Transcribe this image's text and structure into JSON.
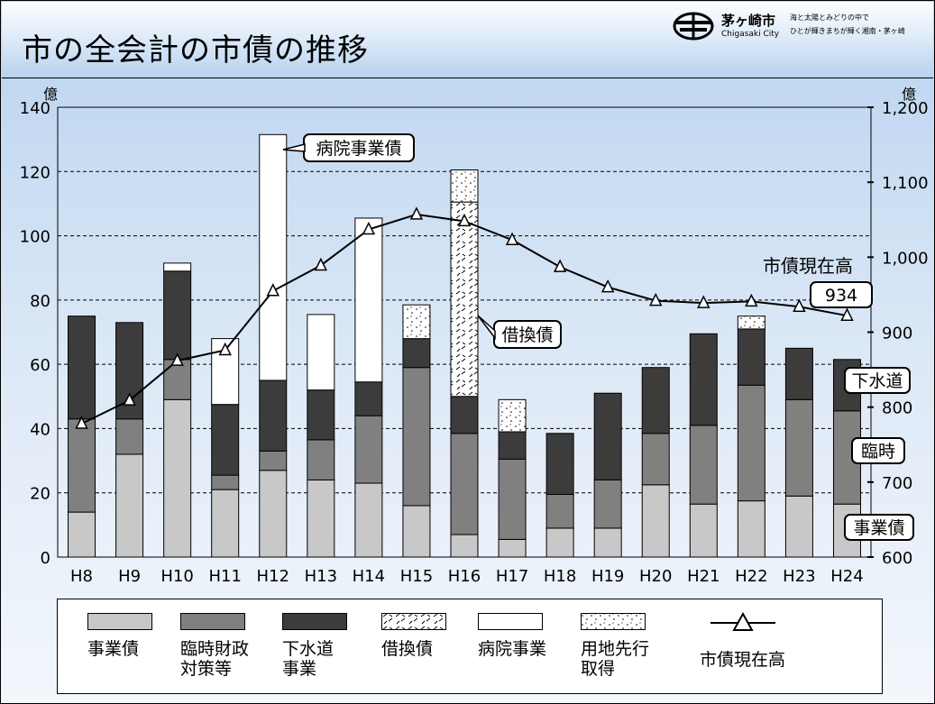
{
  "header": {
    "title": "市の全会計の市債の推移",
    "city_name": "茅ヶ崎市",
    "city_name_en": "Chigasaki City",
    "slogan_line1": "海と太陽とみどりの中で",
    "slogan_line2": "ひとが輝きまちが輝く湘南・茅ヶ崎"
  },
  "chart_data": {
    "type": "bar",
    "stacked": true,
    "categories": [
      "H8",
      "H9",
      "H10",
      "H11",
      "H12",
      "H13",
      "H14",
      "H15",
      "H16",
      "H17",
      "H18",
      "H19",
      "H20",
      "H21",
      "H22",
      "H23",
      "H24"
    ],
    "left_axis": {
      "unit": "億",
      "min": 0,
      "max": 140,
      "ticks": [
        "0",
        "20",
        "40",
        "60",
        "80",
        "100",
        "120",
        "140"
      ]
    },
    "right_axis": {
      "unit": "億",
      "min": 600,
      "max": 1200,
      "ticks": [
        "600",
        "700",
        "800",
        "900",
        "1,000",
        "1,100",
        "1,200"
      ]
    },
    "grid": true,
    "colors": {
      "事業債": "#c8c8c8",
      "臨時財政対策等": "#808080",
      "下水道事業": "#3c3c3c",
      "借換債": "#ffffff",
      "病院事業": "#ffffff",
      "用地先行取得": "#ffffff"
    },
    "series": [
      {
        "name": "事業債",
        "values": [
          14,
          32,
          49,
          21,
          27,
          24,
          23,
          16,
          7,
          5.5,
          9,
          9,
          22.5,
          16.5,
          17.5,
          19,
          16.5
        ]
      },
      {
        "name": "臨時財政対策等",
        "values": [
          29,
          11,
          12.5,
          4.5,
          6,
          12.5,
          21,
          43,
          31.5,
          25,
          10.5,
          15,
          16,
          24.5,
          36,
          30,
          29
        ]
      },
      {
        "name": "下水道事業",
        "values": [
          32,
          30,
          27.5,
          22,
          22,
          15.5,
          10.5,
          9,
          11.5,
          8.5,
          19,
          27,
          20.5,
          28.5,
          17.5,
          16,
          16
        ]
      },
      {
        "name": "借換債",
        "values": [
          0,
          0,
          0,
          0,
          0,
          0,
          0,
          0,
          60.5,
          0,
          0,
          0,
          0,
          0,
          0,
          0,
          0
        ]
      },
      {
        "name": "病院事業",
        "values": [
          0,
          0,
          2.5,
          20.5,
          76.5,
          23.5,
          51,
          0,
          0,
          0,
          0,
          0,
          0,
          0,
          0,
          0,
          0
        ]
      },
      {
        "name": "用地先行取得",
        "values": [
          0,
          0,
          0,
          0,
          0,
          0,
          0,
          10.5,
          10,
          10,
          0,
          0,
          0,
          0,
          4,
          0,
          0
        ]
      }
    ],
    "line_series": {
      "name": "市債現在高",
      "axis": "right",
      "values": [
        778,
        809,
        862,
        876,
        955,
        989,
        1037,
        1057,
        1048,
        1023,
        987,
        960,
        942,
        939,
        941,
        934,
        922
      ]
    },
    "annotations": {
      "hospital": "病院事業債",
      "refinance": "借換債",
      "current_label": "市債現在高",
      "current_value": "934",
      "sewer_tag": "下水道",
      "rinji_tag": "臨時",
      "jigyo_tag": "事業債"
    }
  },
  "legend": {
    "items": [
      {
        "label": "事業債"
      },
      {
        "label": "臨時財政\n対策等"
      },
      {
        "label": "下水道\n事業"
      },
      {
        "label": "借換債"
      },
      {
        "label": "病院事業"
      },
      {
        "label": "用地先行\n取得"
      },
      {
        "label": "市債現在高"
      }
    ]
  }
}
